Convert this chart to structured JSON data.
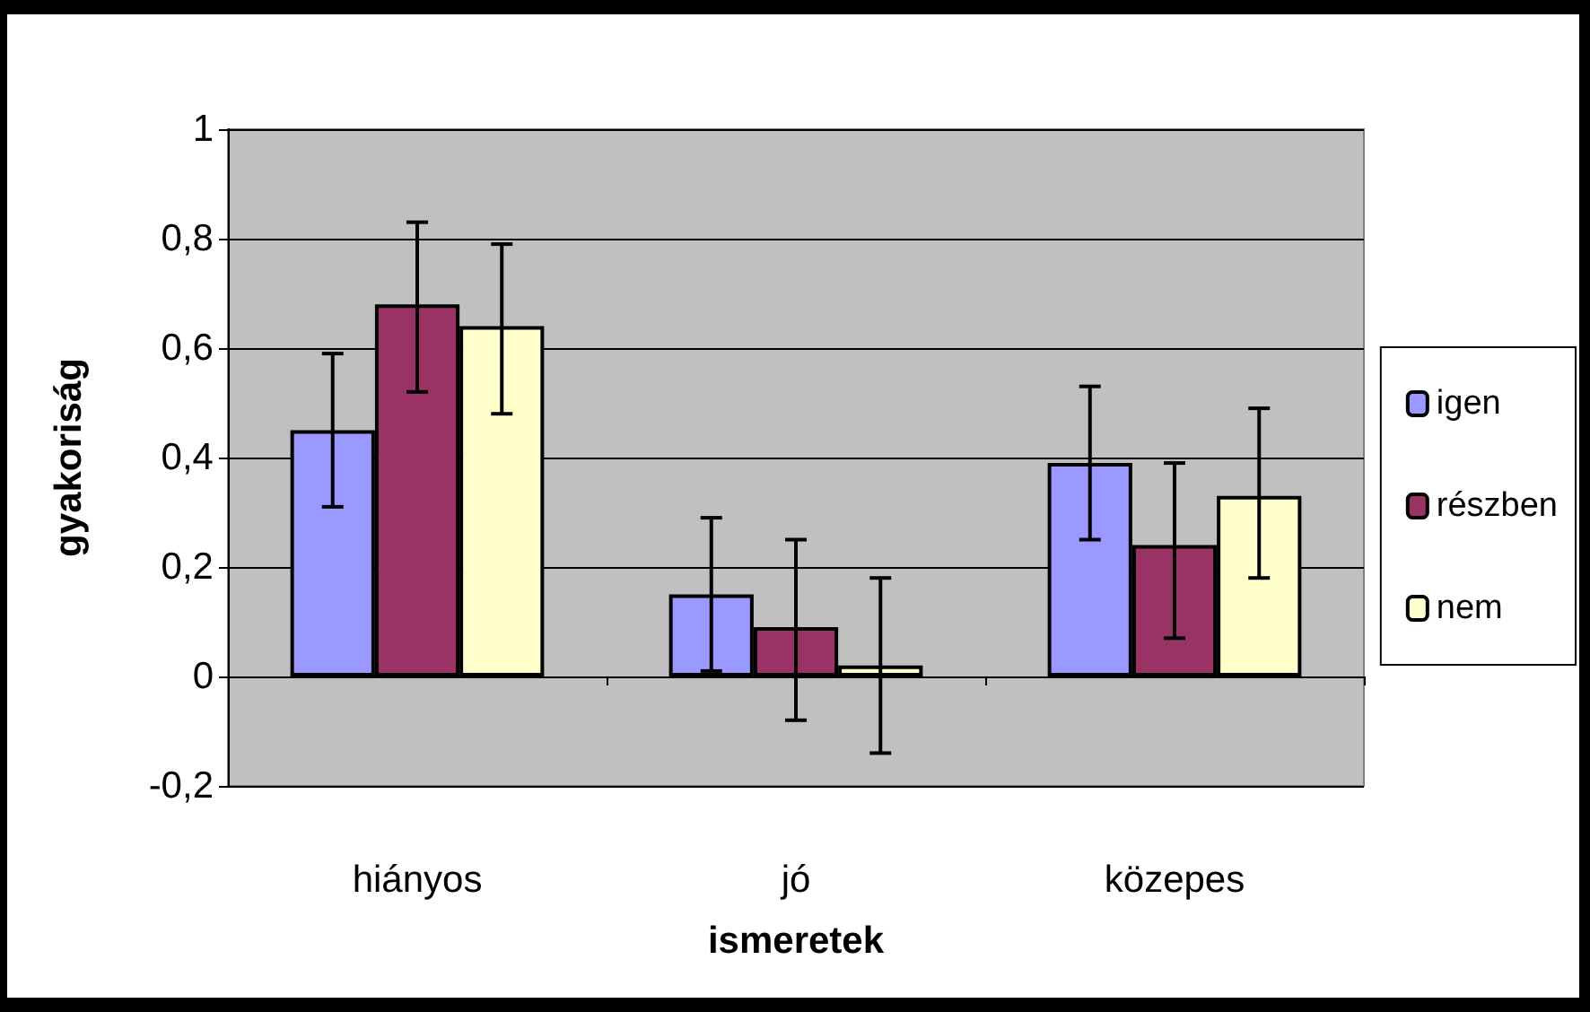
{
  "chart_data": {
    "type": "bar",
    "xlabel": "ismeretek",
    "ylabel": "gyakoriság",
    "categories": [
      "hiányos",
      "jó",
      "közepes"
    ],
    "series": [
      {
        "name": "igen",
        "color": "#9999ff",
        "values": [
          0.45,
          0.15,
          0.39
        ],
        "errors": [
          [
            0.31,
            0.59
          ],
          [
            0.01,
            0.29
          ],
          [
            0.25,
            0.53
          ]
        ]
      },
      {
        "name": "részben",
        "color": "#993366",
        "values": [
          0.68,
          0.09,
          0.24
        ],
        "errors": [
          [
            0.52,
            0.83
          ],
          [
            -0.08,
            0.25
          ],
          [
            0.07,
            0.39
          ]
        ]
      },
      {
        "name": "nem",
        "color": "#ffffcc",
        "values": [
          0.64,
          0.02,
          0.33
        ],
        "errors": [
          [
            0.48,
            0.79
          ],
          [
            -0.14,
            0.18
          ],
          [
            0.18,
            0.49
          ]
        ]
      }
    ],
    "ylim": [
      -0.2,
      1
    ],
    "yticks": [
      {
        "value": -0.2,
        "label": "-0,2"
      },
      0,
      {
        "value": 0.2,
        "label": "0,2"
      },
      {
        "value": 0.4,
        "label": "0,4"
      },
      {
        "value": 0.6,
        "label": "0,6"
      },
      {
        "value": 0.8,
        "label": "0,8"
      },
      1
    ],
    "grid": "y",
    "legend": "right"
  }
}
